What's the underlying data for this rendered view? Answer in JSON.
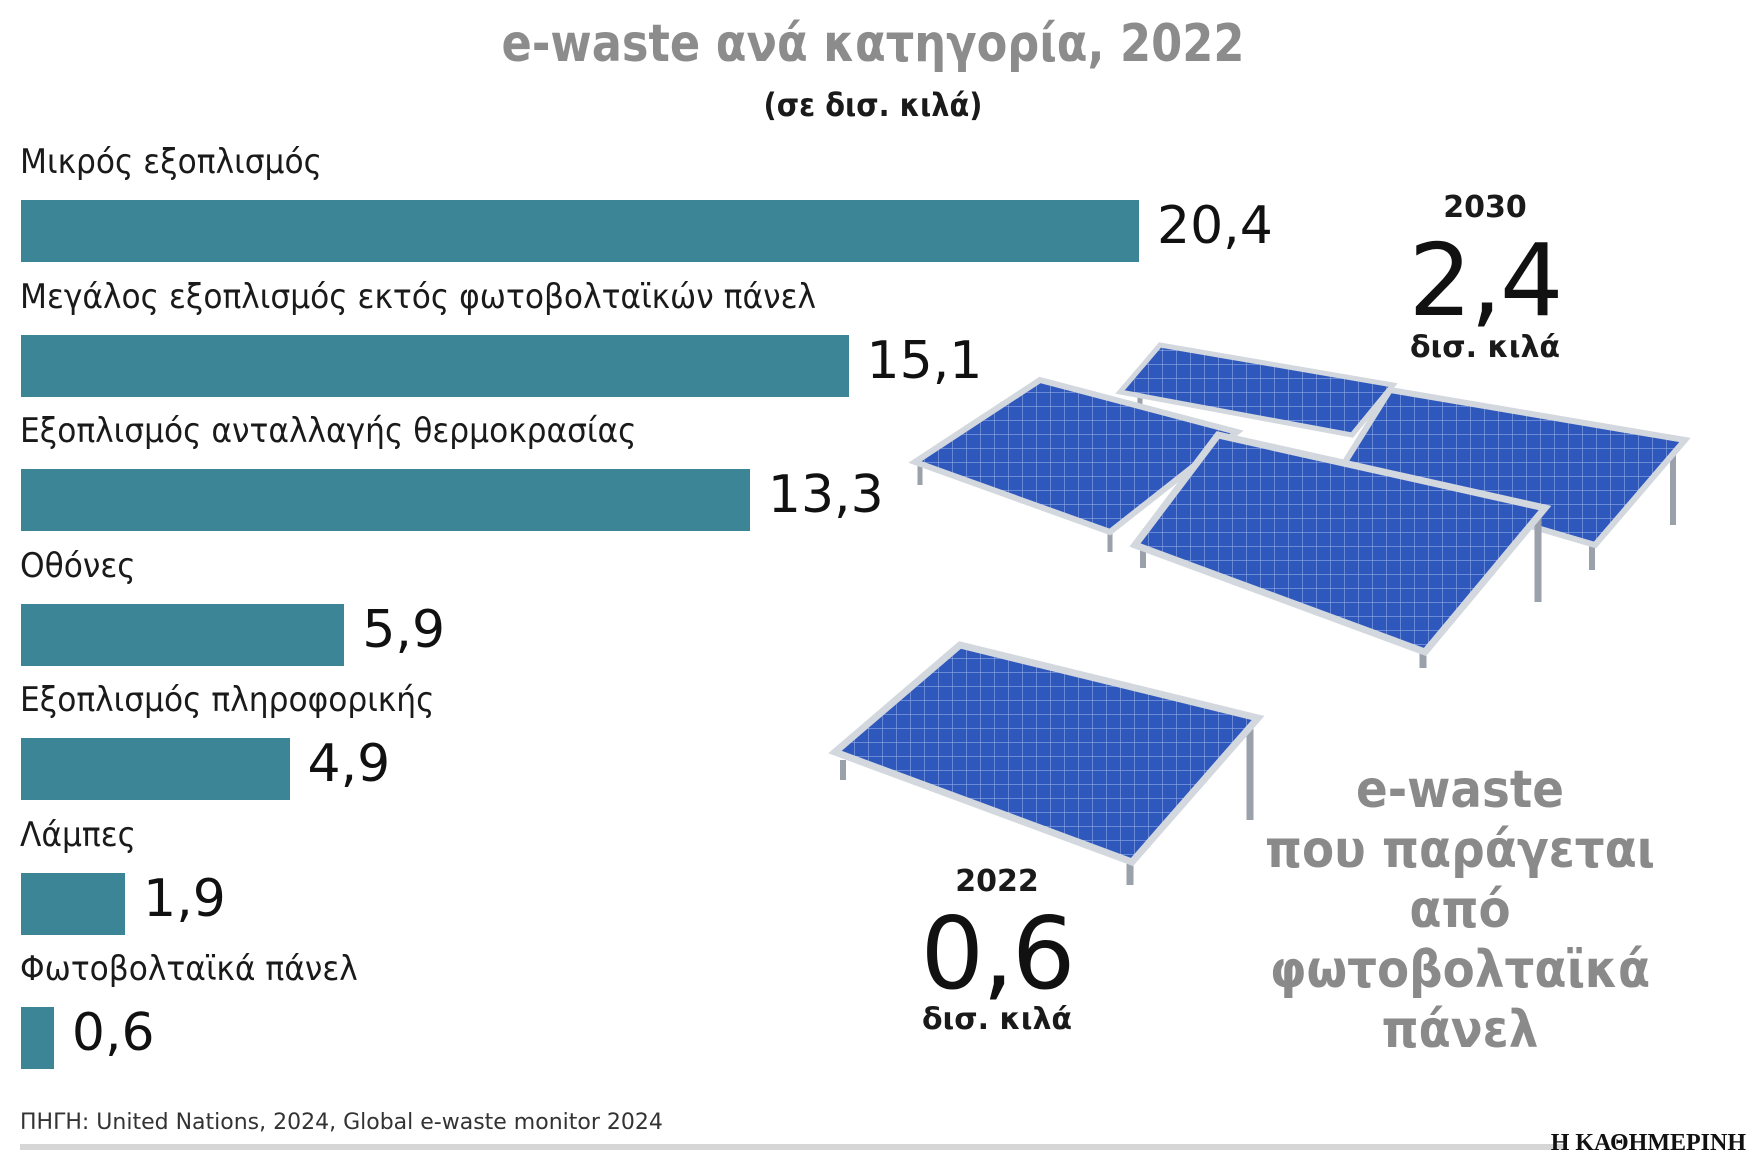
{
  "chart_data": {
    "type": "bar",
    "orientation": "horizontal",
    "title": "e-waste ανά κατηγορία, 2022",
    "subtitle": "(σε δισ. κιλά)",
    "categories": [
      "Μικρός εξοπλισμός",
      "Μεγάλος εξοπλισμός εκτός φωτοβολταϊκών πάνελ",
      "Εξοπλισμός ανταλλαγής θερμοκρασίας",
      "Οθόνες",
      "Εξοπλισμός πληροφορικής",
      "Λάμπες",
      "Φωτοβολταϊκά πάνελ"
    ],
    "values": [
      20.4,
      15.1,
      13.3,
      5.9,
      4.9,
      1.9,
      0.6
    ],
    "value_labels": [
      "20,4",
      "15,1",
      "13,3",
      "5,9",
      "4,9",
      "1,9",
      "0,6"
    ],
    "xlim": [
      0,
      20.4
    ],
    "bar_color": "#3b8597"
  },
  "callout_2030": {
    "year": "2030",
    "value": "2,4",
    "unit": "δισ. κιλά"
  },
  "callout_2022": {
    "year": "2022",
    "value": "0,6",
    "unit": "δισ. κιλά"
  },
  "ewaste_text": [
    "e-waste",
    "που παράγεται",
    "από φωτοβολταϊκά",
    "πάνελ"
  ],
  "source": "ΠΗΓΗ: United Nations, 2024, Global e-waste monitor 2024",
  "brand": "Η ΚΑΘΗΜΕΡΙΝΗ",
  "colors": {
    "title": "#8c8c8c",
    "panel": "#2f55b4",
    "frame": "#c9ced6"
  }
}
